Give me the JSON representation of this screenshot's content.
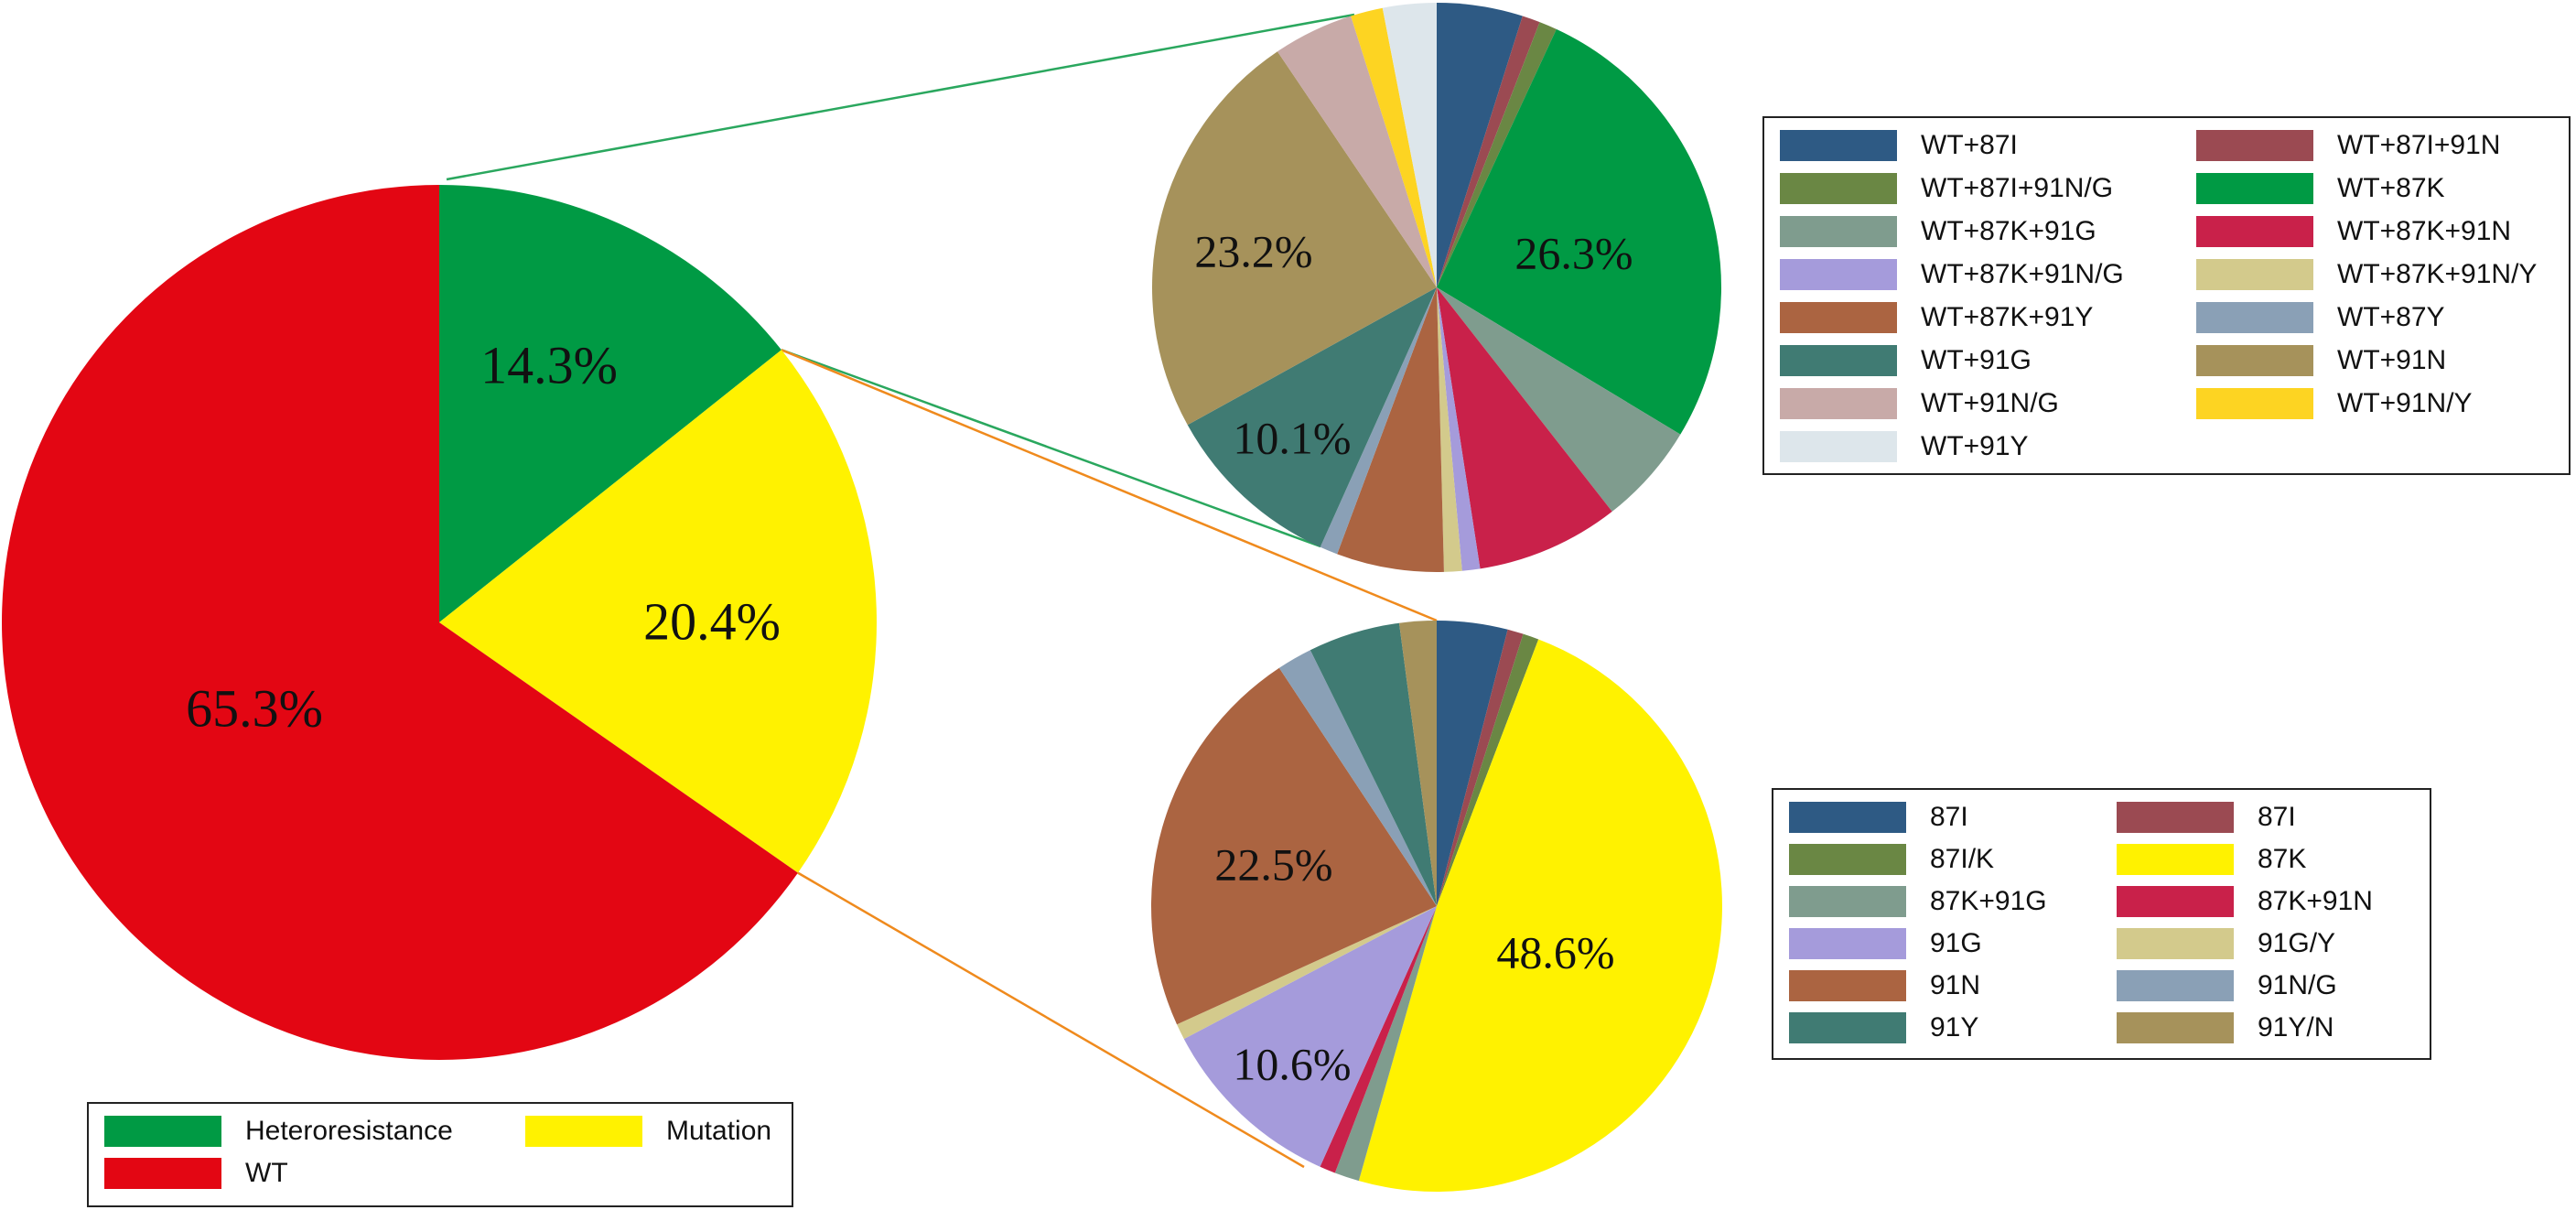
{
  "chart_data": [
    {
      "type": "pie",
      "id": "overall",
      "categories": [
        "Heteroresistance",
        "Mutation",
        "WT"
      ],
      "values": [
        14.3,
        20.4,
        65.3
      ],
      "labels": [
        "14.3%",
        "20.4%",
        "65.3%"
      ],
      "colors": [
        "#009a44",
        "#fff200",
        "#e30613"
      ],
      "legend_order": [
        "Heteroresistance",
        "Mutation",
        "WT"
      ],
      "legend_position": "bottom-left"
    },
    {
      "type": "pie",
      "id": "heteroresistance-breakdown",
      "categories": [
        "WT+87I",
        "WT+87I+91N",
        "WT+87I+91N/G",
        "WT+87K",
        "WT+87K+91G",
        "WT+87K+91N",
        "WT+87K+91N/G",
        "WT+87K+91N/Y",
        "WT+87K+91Y",
        "WT+87Y",
        "WT+91G",
        "WT+91N",
        "WT+91N/G",
        "WT+91N/Y",
        "WT+91Y"
      ],
      "values": [
        4.8,
        1.0,
        1.0,
        26.3,
        5.7,
        8.0,
        1.0,
        1.0,
        6.0,
        1.0,
        10.1,
        23.2,
        4.5,
        1.8,
        3.0
      ],
      "labels": [
        "",
        "",
        "",
        "26.3%",
        "",
        "",
        "",
        "",
        "",
        "",
        "10.1%",
        "23.2%",
        "",
        "",
        ""
      ],
      "colors": [
        "#2e5a84",
        "#9b4a52",
        "#6a8744",
        "#009a44",
        "#7f9c8e",
        "#c9214a",
        "#a59bdb",
        "#d3ca8c",
        "#ab6441",
        "#8aa0b6",
        "#407b73",
        "#a6925b",
        "#c8aaa8",
        "#fdd422",
        "#dde6eb"
      ],
      "legend_position": "right"
    },
    {
      "type": "pie",
      "id": "mutation-breakdown",
      "categories": [
        "87I",
        "87I",
        "87I/K",
        "87K",
        "87K+91G",
        "87K+91N",
        "91G",
        "91G/Y",
        "91N",
        "91N/G",
        "91Y",
        "91Y/N"
      ],
      "values": [
        4.0,
        0.9,
        0.9,
        48.6,
        1.4,
        0.9,
        10.6,
        0.9,
        22.5,
        2.0,
        5.2,
        2.1
      ],
      "labels": [
        "",
        "",
        "",
        "48.6%",
        "",
        "",
        "10.6%",
        "",
        "22.5%",
        "",
        "",
        ""
      ],
      "colors": [
        "#2e5a84",
        "#9b4a52",
        "#6a8744",
        "#fff200",
        "#7f9c8e",
        "#c9214a",
        "#a59bdb",
        "#d3ca8c",
        "#ab6441",
        "#8aa0b6",
        "#407b73",
        "#a6925b"
      ],
      "legend_position": "right"
    }
  ],
  "connector_colors": {
    "heteroresistance": "#2aa75e",
    "mutation": "#ef8a1d"
  }
}
